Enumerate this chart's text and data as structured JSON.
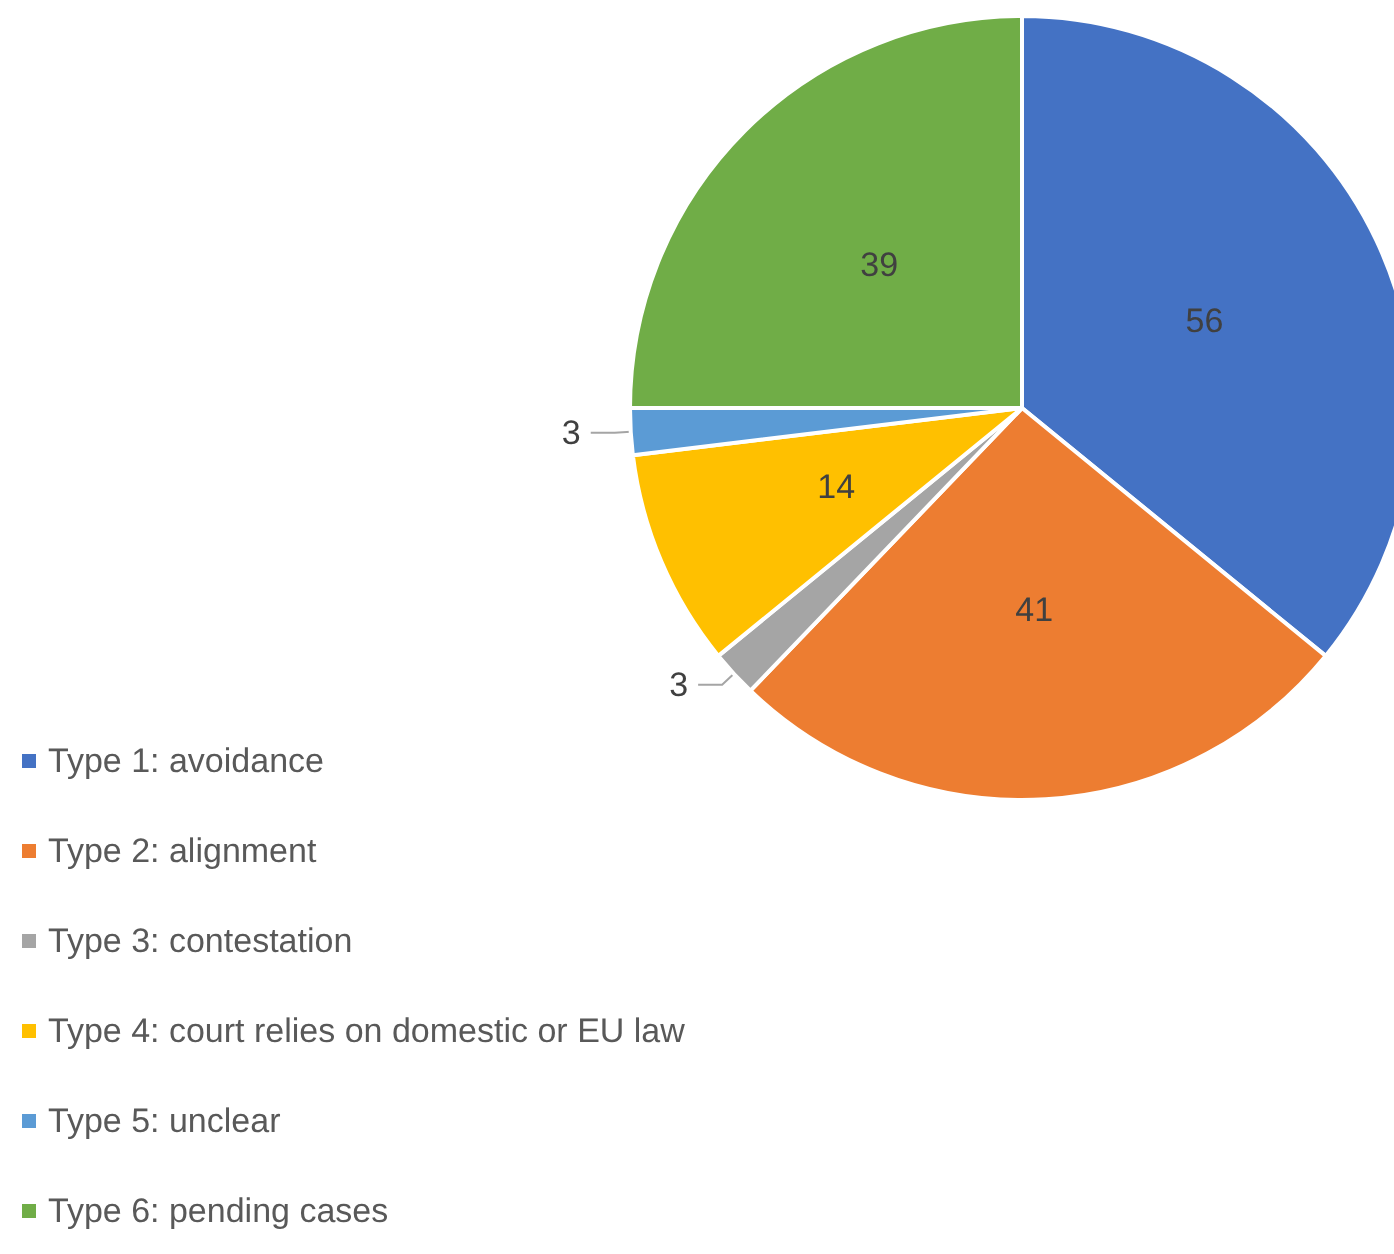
{
  "chart_data": {
    "type": "pie",
    "categories": [
      "Type 1: avoidance",
      "Type 2: alignment",
      "Type 3: contestation",
      "Type 4: court relies on domestic or EU law",
      "Type 5: unclear",
      "Type 6: pending cases"
    ],
    "values": [
      56,
      41,
      3,
      14,
      3,
      39
    ],
    "colors": [
      "#4472c4",
      "#ed7d31",
      "#a5a5a5",
      "#ffc000",
      "#5b9bd5",
      "#70ad47"
    ],
    "data_labels": true,
    "legend": "bottom left"
  }
}
